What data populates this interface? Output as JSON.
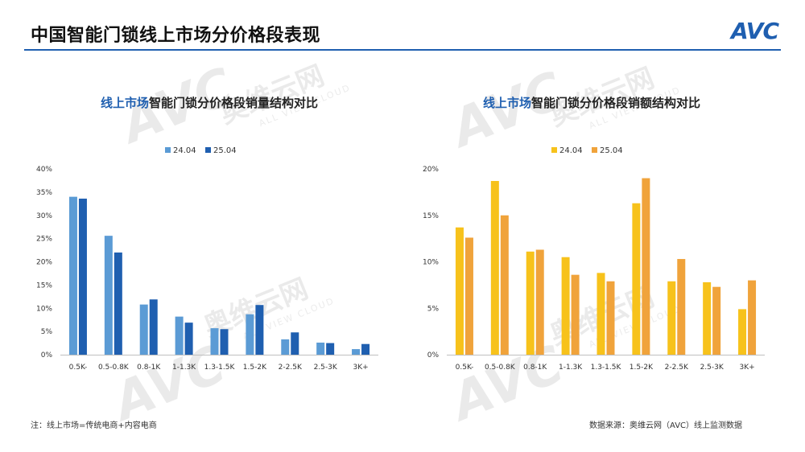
{
  "header": {
    "title": "中国智能门锁线上市场分价格段表现",
    "logo_text": "AVC",
    "accent_color": "#1f5fb0"
  },
  "watermark": {
    "brand": "AVC",
    "name": "奥维云网",
    "sub": "ALL VIEW CLOUD"
  },
  "footer": {
    "note": "注：线上市场=传统电商+内容电商",
    "source": "数据来源：奥维云网（AVC）线上监测数据"
  },
  "chart_data": [
    {
      "type": "bar",
      "title_highlight": "线上市场",
      "title_rest": "智能门锁分价格段销量结构对比",
      "categories": [
        "0.5K-",
        "0.5-0.8K",
        "0.8-1K",
        "1-1.3K",
        "1.3-1.5K",
        "1.5-2K",
        "2-2.5K",
        "2.5-3K",
        "3K+"
      ],
      "series": [
        {
          "name": "24.04",
          "color": "#5b9bd5",
          "values": [
            34.0,
            25.6,
            10.8,
            8.2,
            5.7,
            8.7,
            3.3,
            2.6,
            1.2
          ]
        },
        {
          "name": "25.04",
          "color": "#1f5fb0",
          "values": [
            33.6,
            22.0,
            11.9,
            6.9,
            5.5,
            10.7,
            4.8,
            2.5,
            2.3
          ]
        }
      ],
      "ylim": [
        0,
        40
      ],
      "yticks": [
        "0%",
        "5%",
        "10%",
        "15%",
        "20%",
        "25%",
        "30%",
        "35%",
        "40%"
      ],
      "legend": "top",
      "grid": false
    },
    {
      "type": "bar",
      "title_highlight": "线上市场",
      "title_rest": "智能门锁分价格段销额结构对比",
      "categories": [
        "0.5K-",
        "0.5-0.8K",
        "0.8-1K",
        "1-1.3K",
        "1.3-1.5K",
        "1.5-2K",
        "2-2.5K",
        "2.5-3K",
        "3K+"
      ],
      "series": [
        {
          "name": "24.04",
          "color": "#f7c21b",
          "values": [
            13.7,
            18.7,
            11.1,
            10.5,
            8.8,
            16.3,
            7.9,
            7.8,
            4.9
          ]
        },
        {
          "name": "25.04",
          "color": "#f0a33b",
          "values": [
            12.6,
            15.0,
            11.3,
            8.6,
            7.9,
            19.0,
            10.3,
            7.3,
            8.0
          ]
        }
      ],
      "ylim": [
        0,
        20
      ],
      "yticks": [
        "0%",
        "5%",
        "10%",
        "15%",
        "20%"
      ],
      "legend": "top",
      "grid": false
    }
  ]
}
